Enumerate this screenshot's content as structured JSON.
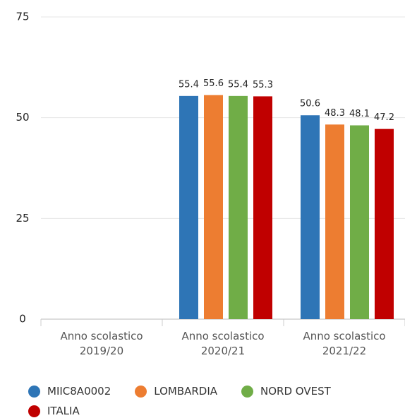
{
  "chart_data": {
    "type": "bar",
    "categories": [
      "Anno scolastico 2019/20",
      "Anno scolastico 2020/21",
      "Anno scolastico 2021/22"
    ],
    "series": [
      {
        "name": "MIIC8A0002",
        "color": "#2e75b6",
        "values": [
          null,
          55.4,
          50.6
        ]
      },
      {
        "name": "LOMBARDIA",
        "color": "#ed7d31",
        "values": [
          null,
          55.6,
          48.3
        ]
      },
      {
        "name": "NORD OVEST",
        "color": "#70ad47",
        "values": [
          null,
          55.4,
          48.1
        ]
      },
      {
        "name": "ITALIA",
        "color": "#c00000",
        "values": [
          null,
          55.3,
          47.2
        ]
      }
    ],
    "ylim": [
      0,
      75
    ],
    "yticks": [
      0,
      25,
      50,
      75
    ],
    "grid": true
  }
}
